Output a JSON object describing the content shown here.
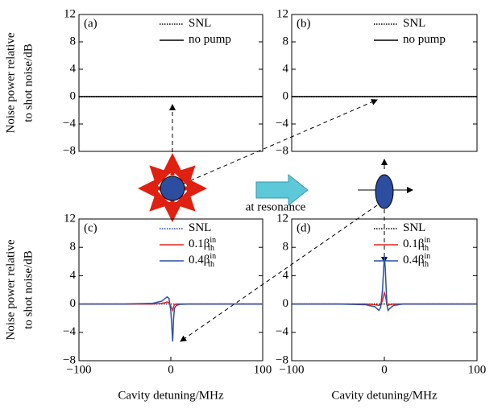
{
  "chart_data": [
    {
      "type": "line",
      "panel": "(a)",
      "ylabel": [
        "Noise power relative",
        "to shot noise/dB"
      ],
      "xlim": [
        -100,
        100
      ],
      "ylim": [
        -8,
        12
      ],
      "yticks": [
        {
          "value": -8,
          "label": "−8"
        },
        {
          "value": -4,
          "label": "−4"
        },
        0,
        4,
        8,
        12
      ],
      "x": [
        -100,
        100
      ],
      "series": [
        {
          "name": "SNL",
          "color": "#000000",
          "dash": "dotted",
          "values": [
            0,
            0
          ]
        },
        {
          "name": "no pump",
          "color": "#000000",
          "dash": "solid",
          "values": [
            0,
            0
          ]
        }
      ]
    },
    {
      "type": "line",
      "panel": "(b)",
      "xlim": [
        -100,
        100
      ],
      "ylim": [
        -8,
        12
      ],
      "yticks": [
        {
          "value": -8,
          "label": "−8"
        },
        {
          "value": -4,
          "label": "−4"
        },
        0,
        4,
        8,
        12
      ],
      "x": [
        -100,
        100
      ],
      "series": [
        {
          "name": "SNL",
          "color": "#000000",
          "dash": "dotted",
          "values": [
            0,
            0
          ]
        },
        {
          "name": "no pump",
          "color": "#000000",
          "dash": "solid",
          "values": [
            0,
            0
          ]
        }
      ]
    },
    {
      "type": "line",
      "panel": "(c)",
      "ylabel": [
        "Noise power relative",
        "to shot noise/dB"
      ],
      "xlabel": "Cavity detuning/MHz",
      "xlim": [
        -100,
        100
      ],
      "ylim": [
        -8,
        12
      ],
      "xticks": [
        {
          "value": -100,
          "label": "−100"
        },
        0,
        100
      ],
      "yticks": [
        {
          "value": -8,
          "label": "−8"
        },
        {
          "value": -4,
          "label": "−4"
        },
        0,
        4,
        8,
        12
      ],
      "x": [
        -100,
        -50,
        -20,
        -10,
        -6,
        -4,
        -2,
        0,
        1,
        2,
        3,
        4,
        6,
        10,
        20,
        50,
        100
      ],
      "series": [
        {
          "name": "SNL",
          "color": "#1f3fb5",
          "dash": "dotted",
          "values": [
            0,
            0,
            0,
            0,
            0,
            0,
            0,
            0,
            0,
            0,
            0,
            0,
            0,
            0,
            0,
            0,
            0
          ]
        },
        {
          "name": "0.1β",
          "subscript": "th",
          "superscript": "in",
          "color": "#e8221c",
          "dash": "solid",
          "values": [
            0,
            0,
            0,
            0.1,
            0.2,
            0.3,
            0.2,
            -0.3,
            -0.6,
            -0.9,
            -0.4,
            -0.1,
            0,
            0,
            0,
            0,
            0
          ]
        },
        {
          "name": "0.4β",
          "subscript": "th",
          "superscript": "in",
          "color": "#2a4fa8",
          "dash": "solid",
          "values": [
            0,
            0,
            0.1,
            0.4,
            0.8,
            1,
            0.8,
            -1,
            -3,
            -5.3,
            -2,
            -0.6,
            -0.2,
            -0.05,
            0,
            0,
            0
          ]
        }
      ]
    },
    {
      "type": "line",
      "panel": "(d)",
      "xlabel": "Cavity detuning/MHz",
      "xlim": [
        -100,
        100
      ],
      "ylim": [
        -8,
        12
      ],
      "xticks": [
        {
          "value": -100,
          "label": "−100"
        },
        0,
        100
      ],
      "yticks": [
        {
          "value": -8,
          "label": "−8"
        },
        {
          "value": -4,
          "label": "−4"
        },
        0,
        4,
        8,
        12
      ],
      "x": [
        -100,
        -50,
        -20,
        -10,
        -6,
        -4,
        -2,
        0,
        1,
        2,
        3,
        4,
        6,
        10,
        20,
        50,
        100
      ],
      "series": [
        {
          "name": "SNL",
          "color": "#000000",
          "dash": "dotted",
          "values": [
            0,
            0,
            0,
            0,
            0,
            0,
            0,
            0,
            0,
            0,
            0,
            0,
            0,
            0,
            0,
            0,
            0
          ]
        },
        {
          "name": "0.1β",
          "subscript": "th",
          "superscript": "in",
          "color": "#e8221c",
          "dash": "solid",
          "values": [
            0,
            0,
            0,
            -0.1,
            -0.2,
            -0.1,
            0.5,
            1.6,
            1.2,
            0.5,
            -0.1,
            -0.2,
            -0.1,
            0,
            0,
            0,
            0
          ]
        },
        {
          "name": "0.4β",
          "subscript": "th",
          "superscript": "in",
          "color": "#2a4fa8",
          "dash": "solid",
          "values": [
            0,
            0,
            -0.1,
            -0.4,
            -0.9,
            -0.5,
            2,
            6.8,
            5,
            2,
            -0.3,
            -0.9,
            -0.6,
            -0.2,
            0,
            0,
            0
          ]
        }
      ]
    }
  ],
  "annotation": "at resonance"
}
